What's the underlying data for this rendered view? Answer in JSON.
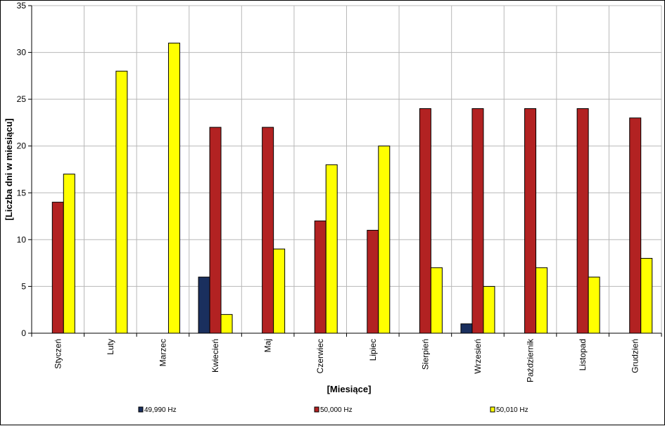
{
  "chart_data": {
    "type": "bar",
    "title": "",
    "xlabel": "[Miesiące]",
    "ylabel": "[Liczba dni w miesiącu]",
    "ylim": [
      0,
      35
    ],
    "yticks": [
      0,
      5,
      10,
      15,
      20,
      25,
      30,
      35
    ],
    "grid": true,
    "legend_position": "bottom",
    "categories": [
      "Styczeń",
      "Luty",
      "Marzec",
      "Kwiecień",
      "Maj",
      "Czerwiec",
      "Lipiec",
      "Sierpień",
      "Wrzesień",
      "Październik",
      "Listopad",
      "Grudzień"
    ],
    "series": [
      {
        "name": "49,990 Hz",
        "color": "#1a2f5e",
        "values": [
          0,
          0,
          0,
          6,
          0,
          0,
          0,
          0,
          1,
          0,
          0,
          0
        ]
      },
      {
        "name": "50,000 Hz",
        "color": "#b22222",
        "values": [
          14,
          0,
          0,
          22,
          22,
          12,
          11,
          24,
          24,
          24,
          24,
          23
        ]
      },
      {
        "name": "50,010 Hz",
        "color": "#ffff00",
        "values": [
          17,
          28,
          31,
          2,
          9,
          18,
          20,
          7,
          5,
          7,
          6,
          8
        ]
      }
    ]
  }
}
